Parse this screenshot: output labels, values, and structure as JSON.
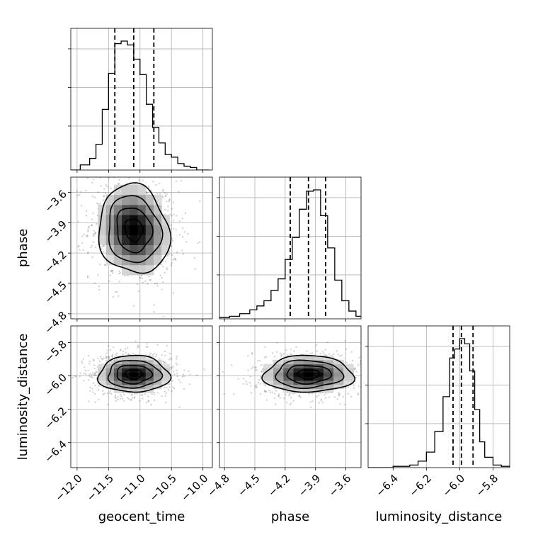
{
  "chart_data": {
    "type": "corner",
    "grid": true,
    "colors": {
      "hist": "#000000",
      "quantile": "#000000",
      "grid": "#b0b0b0",
      "scatter": "#000000",
      "contour": "#000000"
    },
    "parameters": [
      {
        "key": "geocent_time",
        "label": "geocent_time",
        "range": [
          -12.1,
          -9.85
        ],
        "ticks": [
          -12.0,
          -11.5,
          -11.0,
          -10.5,
          -10.0
        ],
        "tick_labels": [
          "−12.0",
          "−11.5",
          "−11.0",
          "−10.5",
          "−10.0"
        ],
        "hist_edges": [
          -12.1,
          -11.95,
          -11.8,
          -11.7,
          -11.6,
          -11.5,
          -11.4,
          -11.3,
          -11.2,
          -11.1,
          -11.0,
          -10.9,
          -10.8,
          -10.7,
          -10.6,
          -10.5,
          -10.4,
          -10.3,
          -10.2,
          -10.1,
          -10.0,
          -9.9
        ],
        "hist_counts": [
          0.0,
          0.04,
          0.09,
          0.2,
          0.47,
          0.75,
          0.98,
          1.0,
          0.97,
          0.86,
          0.74,
          0.51,
          0.33,
          0.21,
          0.12,
          0.1,
          0.05,
          0.03,
          0.02,
          0.0,
          0.0
        ],
        "quantiles": [
          -11.4,
          -11.1,
          -10.78
        ]
      },
      {
        "key": "phase",
        "label": "phase",
        "range": [
          -4.85,
          -3.45
        ],
        "ticks": [
          -4.8,
          -4.5,
          -4.2,
          -3.9,
          -3.6
        ],
        "tick_labels": [
          "−4.8",
          "−4.5",
          "−4.2",
          "−3.9",
          "−3.6"
        ],
        "hist_edges": [
          -4.85,
          -4.75,
          -4.65,
          -4.55,
          -4.48,
          -4.41,
          -4.34,
          -4.27,
          -4.2,
          -4.13,
          -4.06,
          -3.99,
          -3.92,
          -3.85,
          -3.78,
          -3.71,
          -3.64,
          -3.57,
          -3.5,
          -3.45
        ],
        "hist_counts": [
          0.01,
          0.02,
          0.04,
          0.07,
          0.1,
          0.14,
          0.22,
          0.31,
          0.46,
          0.63,
          0.85,
          0.99,
          1.0,
          0.8,
          0.55,
          0.3,
          0.14,
          0.06,
          0.02
        ],
        "quantiles": [
          -4.15,
          -3.97,
          -3.8
        ]
      },
      {
        "key": "luminosity_distance",
        "label": "luminosity_distance",
        "range": [
          -6.55,
          -5.7
        ],
        "ticks": [
          -6.4,
          -6.2,
          -6.0,
          -5.8
        ],
        "tick_labels": [
          "−6.4",
          "−6.2",
          "−6.0",
          "−5.8"
        ],
        "hist_edges": [
          -6.55,
          -6.4,
          -6.3,
          -6.25,
          -6.2,
          -6.15,
          -6.1,
          -6.06,
          -6.03,
          -6.0,
          -5.97,
          -5.94,
          -5.91,
          -5.88,
          -5.85,
          -5.8,
          -5.75,
          -5.7
        ],
        "hist_counts": [
          0.0,
          0.01,
          0.02,
          0.05,
          0.12,
          0.28,
          0.55,
          0.85,
          0.92,
          1.0,
          0.96,
          0.75,
          0.45,
          0.2,
          0.08,
          0.02,
          0.01
        ],
        "quantiles": [
          -6.04,
          -5.99,
          -5.92
        ]
      }
    ],
    "pairs": [
      {
        "x": "geocent_time",
        "y": "phase",
        "center": [
          -11.1,
          -3.97
        ],
        "spread": [
          0.28,
          0.22
        ],
        "rho": -0.1,
        "contour_levels": [
          0.5,
          1.0,
          1.5,
          2.0
        ]
      },
      {
        "x": "geocent_time",
        "y": "luminosity_distance",
        "center": [
          -11.1,
          -5.99
        ],
        "spread": [
          0.28,
          0.055
        ],
        "rho": 0.0,
        "contour_levels": [
          0.5,
          1.0,
          1.5,
          2.0
        ]
      },
      {
        "x": "phase",
        "y": "luminosity_distance",
        "center": [
          -3.97,
          -5.99
        ],
        "spread": [
          0.22,
          0.055
        ],
        "rho": 0.0,
        "contour_levels": [
          0.5,
          1.0,
          1.5,
          2.0
        ]
      }
    ]
  }
}
